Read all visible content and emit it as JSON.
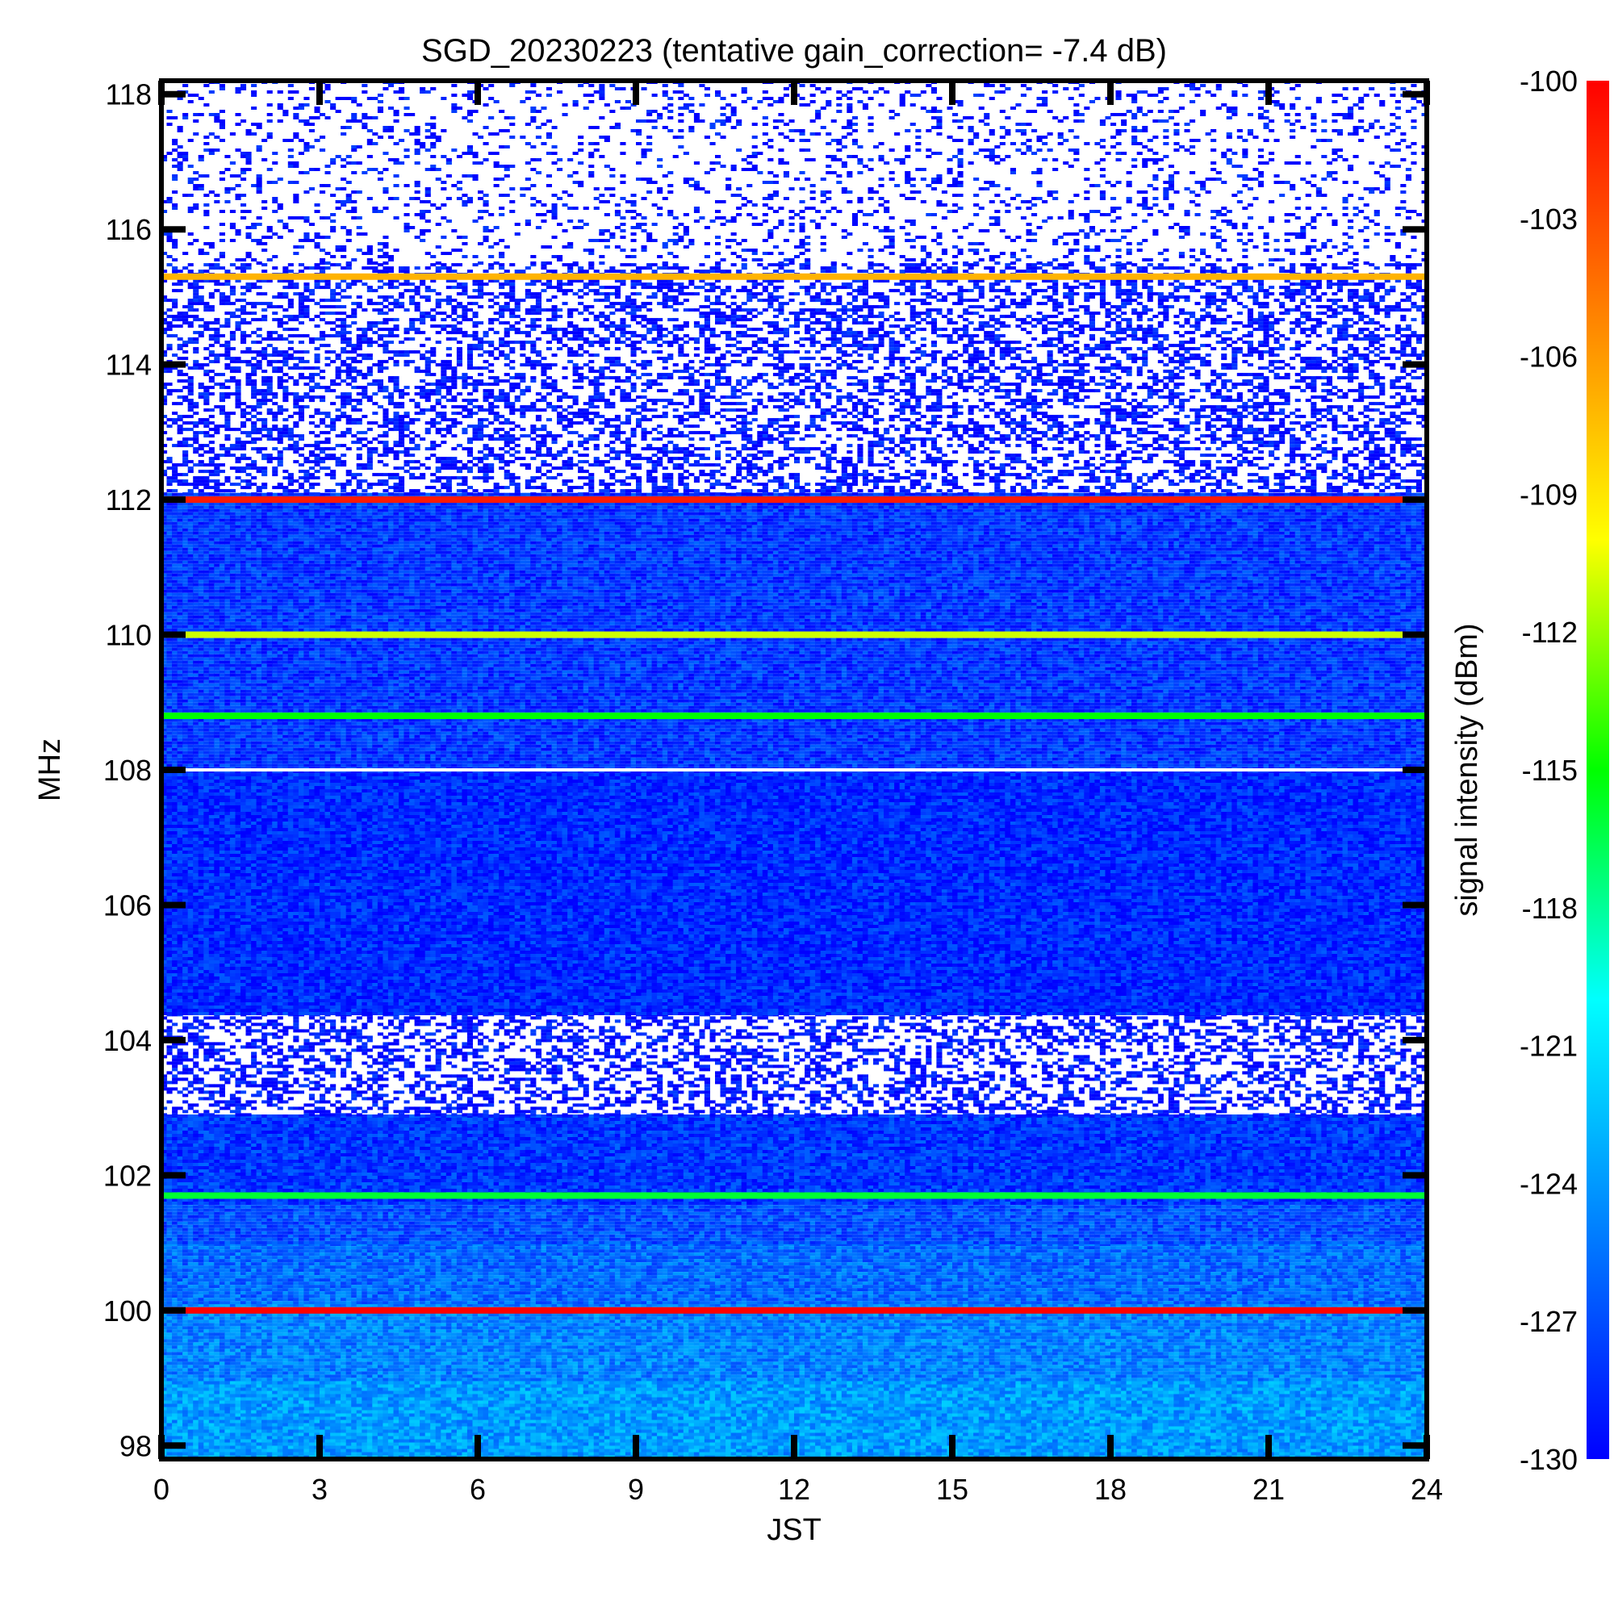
{
  "chart_data": {
    "type": "heatmap",
    "title": "SGD_20230223 (tentative gain_correction= -7.4 dB)",
    "xlabel": "JST",
    "ylabel": "MHz",
    "colorbar_label": "signal intensity (dBm)",
    "xlim": [
      0,
      24
    ],
    "ylim": [
      97.8,
      118.2
    ],
    "x_ticks": [
      0,
      3,
      6,
      9,
      12,
      15,
      18,
      21,
      24
    ],
    "y_ticks": [
      98,
      100,
      102,
      104,
      106,
      108,
      110,
      112,
      114,
      116,
      118
    ],
    "colorbar_range": [
      -130,
      -100
    ],
    "colorbar_ticks": [
      -100,
      -103,
      -106,
      -109,
      -112,
      -115,
      -118,
      -121,
      -124,
      -127,
      -130
    ],
    "colormap": [
      "#0000ff",
      "#0080ff",
      "#00ffff",
      "#00ff00",
      "#ffff00",
      "#ff8000",
      "#ff0000"
    ],
    "background_bands": [
      {
        "y_range": [
          97.8,
          99.0
        ],
        "level_dBm": -124.5
      },
      {
        "y_range": [
          99.0,
          100.1
        ],
        "level_dBm": -125.5
      },
      {
        "y_range": [
          100.1,
          101.0
        ],
        "level_dBm": -126.5
      },
      {
        "y_range": [
          101.0,
          101.6
        ],
        "level_dBm": -127.5
      },
      {
        "y_range": [
          101.6,
          102.9
        ],
        "level_dBm": -128.5
      },
      {
        "y_range": [
          102.9,
          104.4
        ],
        "level_dBm": -130,
        "sparse": true
      },
      {
        "y_range": [
          104.4,
          108.0
        ],
        "level_dBm": -129
      },
      {
        "y_range": [
          108.0,
          112.1
        ],
        "level_dBm": -128.5
      },
      {
        "y_range": [
          112.1,
          115.5
        ],
        "level_dBm": -130,
        "sparse": true
      },
      {
        "y_range": [
          115.5,
          118.2
        ],
        "level_dBm": -130,
        "very_sparse": true
      }
    ],
    "strong_signals": [
      {
        "freq_MHz": 100.0,
        "level_dBm": -100
      },
      {
        "freq_MHz": 101.7,
        "level_dBm": -116
      },
      {
        "freq_MHz": 108.8,
        "level_dBm": -115
      },
      {
        "freq_MHz": 110.0,
        "level_dBm": -111
      },
      {
        "freq_MHz": 112.0,
        "level_dBm": -101
      },
      {
        "freq_MHz": 115.3,
        "level_dBm": -107
      }
    ],
    "gaps": [
      {
        "freq_MHz": 108.0,
        "note": "blank row"
      }
    ]
  }
}
